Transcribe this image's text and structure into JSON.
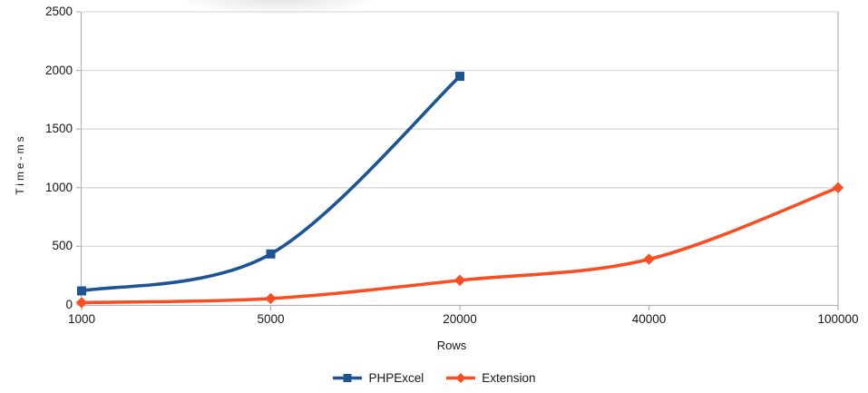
{
  "chart_data": {
    "type": "line",
    "title": "",
    "xlabel": "Rows",
    "ylabel": "Time-ms",
    "categories": [
      "1000",
      "5000",
      "20000",
      "40000",
      "100000"
    ],
    "series": [
      {
        "name": "PHPExcel",
        "marker": "square",
        "color": "#1d5493",
        "values": [
          120,
          435,
          1950,
          null,
          null
        ]
      },
      {
        "name": "Extension",
        "marker": "diamond",
        "color": "#f94e22",
        "values": [
          20,
          55,
          210,
          390,
          1000
        ]
      }
    ],
    "ylim": [
      0,
      2500
    ],
    "yticks": [
      0,
      500,
      1000,
      1500,
      2000,
      2500
    ],
    "grid": "horizontal-only",
    "legend_position": "bottom-center"
  },
  "colors": {
    "background": "#ffffff",
    "gridline": "#d9d9d9",
    "axis": "#b3b3b3",
    "text": "#161616"
  }
}
